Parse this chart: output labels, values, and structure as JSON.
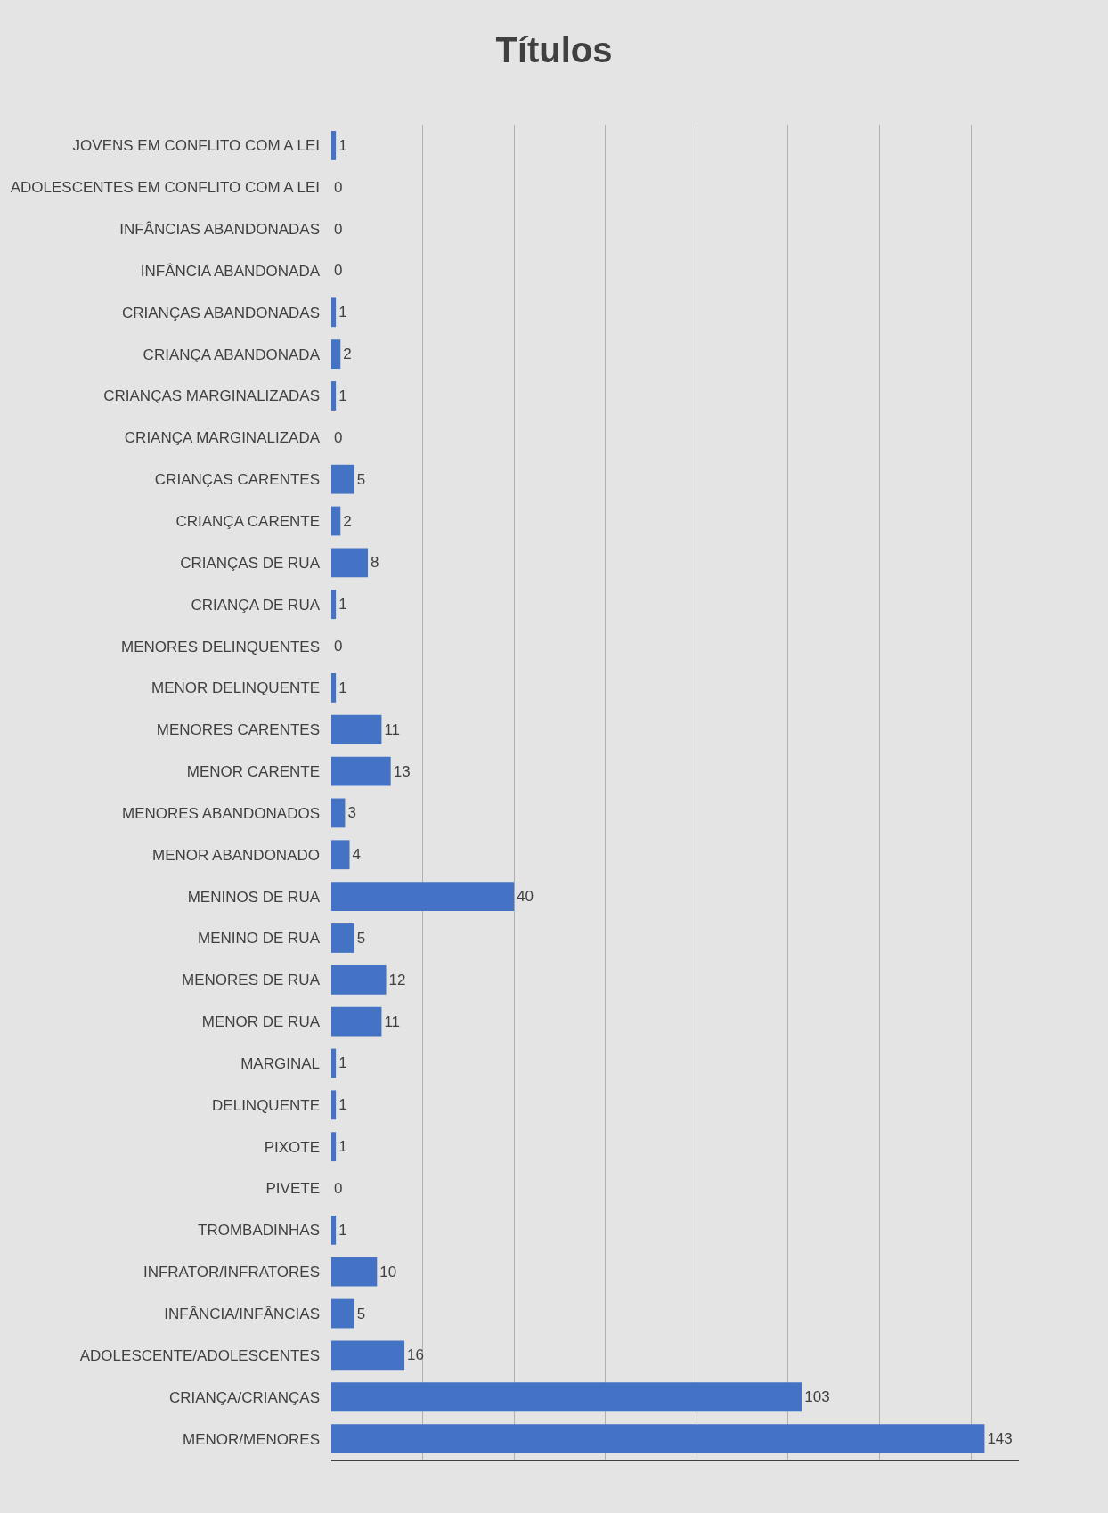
{
  "chart_data": {
    "type": "bar",
    "title": "Títulos",
    "orientation": "horizontal",
    "categories": [
      "JOVENS EM CONFLITO COM A LEI",
      "ADOLESCENTES EM CONFLITO COM A LEI",
      "INFÂNCIAS ABANDONADAS",
      "INFÂNCIA ABANDONADA",
      "CRIANÇAS ABANDONADAS",
      "CRIANÇA ABANDONADA",
      "CRIANÇAS MARGINALIZADAS",
      "CRIANÇA MARGINALIZADA",
      "CRIANÇAS CARENTES",
      "CRIANÇA CARENTE",
      "CRIANÇAS DE RUA",
      "CRIANÇA DE RUA",
      "MENORES DELINQUENTES",
      "MENOR DELINQUENTE",
      "MENORES CARENTES",
      "MENOR CARENTE",
      "MENORES ABANDONADOS",
      "MENOR ABANDONADO",
      "MENINOS DE RUA",
      "MENINO DE RUA",
      "MENORES DE RUA",
      "MENOR DE RUA",
      "MARGINAL",
      "DELINQUENTE",
      "PIXOTE",
      "PIVETE",
      "TROMBADINHAS",
      "INFRATOR/INFRATORES",
      "INFÂNCIA/INFÂNCIAS",
      "ADOLESCENTE/ADOLESCENTES",
      "CRIANÇA/CRIANÇAS",
      "MENOR/MENORES"
    ],
    "values": [
      1,
      0,
      0,
      0,
      1,
      2,
      1,
      0,
      5,
      2,
      8,
      1,
      0,
      1,
      11,
      13,
      3,
      4,
      40,
      5,
      12,
      11,
      1,
      1,
      1,
      0,
      1,
      10,
      5,
      16,
      103,
      143
    ],
    "color": "#4472c4",
    "data_labels": true,
    "grid": "x",
    "tick_labels": "y"
  }
}
